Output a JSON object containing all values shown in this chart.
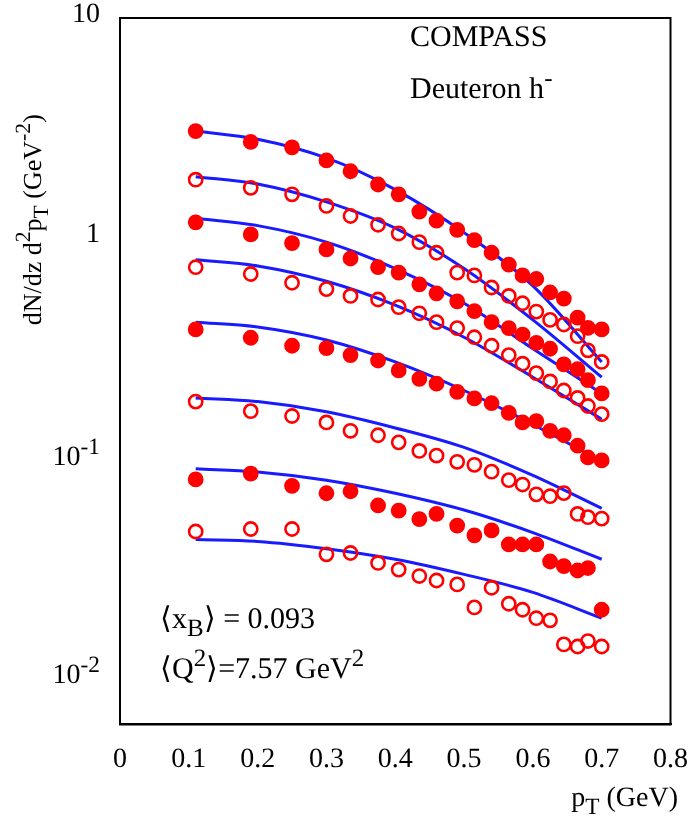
{
  "chart_data": {
    "type": "scatter",
    "xlabel": "p$_{T}$ (GeV)",
    "ylabel": "dN/dz d$^{2}$p$_{T}$ (GeV$^{-2}$)",
    "annotations": [
      "COMPASS",
      "Deuteron   h$^{-}$",
      "⟨x$_{B}$⟩ = 0.093",
      "⟨Q$^{2}$⟩=7.57 GeV$^{2}$"
    ],
    "x": [
      0.11,
      0.19,
      0.25,
      0.3,
      0.335,
      0.375,
      0.405,
      0.435,
      0.46,
      0.49,
      0.515,
      0.54,
      0.565,
      0.585,
      0.605,
      0.625,
      0.645,
      0.665,
      0.68,
      0.7
    ],
    "series": [
      {
        "color": "#ff0000",
        "marker": "circle",
        "values": [
          3.05,
          2.72,
          2.57,
          2.24,
          2.0,
          1.74,
          1.57,
          1.31,
          1.19,
          1.08,
          0.97,
          0.85,
          0.75,
          0.67,
          0.645,
          0.56,
          0.525,
          0.43,
          0.386,
          0.38
        ]
      },
      {
        "color": "#ff0000",
        "marker": "circle-open",
        "values": [
          1.83,
          1.68,
          1.57,
          1.39,
          1.25,
          1.14,
          1.04,
          0.95,
          0.85,
          0.69,
          0.67,
          0.59,
          0.54,
          0.5,
          0.458,
          0.42,
          0.4,
          0.354,
          0.305,
          0.27
        ]
      },
      {
        "color": "#ff0000",
        "marker": "circle",
        "values": [
          1.17,
          1.03,
          0.94,
          0.88,
          0.8,
          0.73,
          0.69,
          0.61,
          0.555,
          0.51,
          0.46,
          0.41,
          0.385,
          0.36,
          0.33,
          0.31,
          0.263,
          0.25,
          0.223,
          0.194
        ]
      },
      {
        "color": "#ff0000",
        "marker": "circle-open",
        "values": [
          0.73,
          0.68,
          0.62,
          0.58,
          0.54,
          0.52,
          0.48,
          0.45,
          0.41,
          0.385,
          0.35,
          0.32,
          0.29,
          0.265,
          0.24,
          0.22,
          0.2,
          0.185,
          0.17,
          0.156
        ]
      },
      {
        "color": "#ff0000",
        "marker": "circle",
        "values": [
          0.38,
          0.348,
          0.32,
          0.312,
          0.29,
          0.274,
          0.247,
          0.226,
          0.215,
          0.197,
          0.184,
          0.175,
          0.158,
          0.143,
          0.145,
          0.131,
          0.125,
          0.112,
          0.099,
          0.096
        ]
      },
      {
        "color": "#ff0000",
        "marker": "circle-open",
        "values": [
          0.178,
          0.161,
          0.153,
          0.143,
          0.131,
          0.125,
          0.116,
          0.106,
          0.101,
          0.0946,
          0.0916,
          0.0853,
          0.078,
          0.0745,
          0.0672,
          0.0659,
          0.0681,
          0.0547,
          0.0529,
          0.0521
        ]
      },
      {
        "color": "#ff0000",
        "marker": "circle",
        "values": [
          0.0786,
          0.0836,
          0.0735,
          0.068,
          0.0694,
          0.0598,
          0.0566,
          0.0518,
          0.0547,
          0.0484,
          0.0437,
          0.046,
          0.0397,
          0.0397,
          0.0397,
          0.0332,
          0.0316,
          0.0302,
          0.031,
          0.02
        ]
      },
      {
        "color": "#ff0000",
        "marker": "circle-open",
        "values": [
          0.0455,
          0.0467,
          0.0467,
          0.0358,
          0.0363,
          0.0327,
          0.0305,
          0.0285,
          0.0272,
          0.0261,
          0.0205,
          0.0252,
          0.0213,
          0.02,
          0.0183,
          0.0179,
          0.0139,
          0.0136,
          0.0144,
          0.0136
        ]
      },
      {
        "type": "line",
        "color": "#1a1aff",
        "x": [
          0.11,
          0.2,
          0.3,
          0.4,
          0.5,
          0.6,
          0.7
        ],
        "values": [
          3.05,
          2.8,
          2.3,
          1.65,
          1.05,
          0.6,
          0.27
        ]
      },
      {
        "type": "line",
        "color": "#1a1aff",
        "x": [
          0.11,
          0.2,
          0.3,
          0.4,
          0.5,
          0.6,
          0.7
        ],
        "values": [
          1.89,
          1.75,
          1.45,
          1.1,
          0.72,
          0.42,
          0.23
        ]
      },
      {
        "type": "line",
        "color": "#1a1aff",
        "x": [
          0.11,
          0.2,
          0.3,
          0.4,
          0.5,
          0.6,
          0.7
        ],
        "values": [
          1.22,
          1.13,
          0.95,
          0.72,
          0.5,
          0.31,
          0.194
        ]
      },
      {
        "type": "line",
        "color": "#1a1aff",
        "x": [
          0.11,
          0.2,
          0.3,
          0.4,
          0.5,
          0.6,
          0.7
        ],
        "values": [
          0.79,
          0.74,
          0.63,
          0.49,
          0.35,
          0.23,
          0.148
        ]
      },
      {
        "type": "line",
        "color": "#1a1aff",
        "x": [
          0.11,
          0.2,
          0.3,
          0.4,
          0.5,
          0.6,
          0.7
        ],
        "values": [
          0.41,
          0.39,
          0.34,
          0.27,
          0.2,
          0.14,
          0.095
        ]
      },
      {
        "type": "line",
        "color": "#1a1aff",
        "x": [
          0.11,
          0.2,
          0.3,
          0.4,
          0.5,
          0.6,
          0.7
        ],
        "values": [
          0.185,
          0.178,
          0.16,
          0.135,
          0.11,
          0.082,
          0.058
        ]
      },
      {
        "type": "line",
        "color": "#1a1aff",
        "x": [
          0.11,
          0.2,
          0.3,
          0.4,
          0.5,
          0.6,
          0.7
        ],
        "values": [
          0.088,
          0.085,
          0.078,
          0.068,
          0.057,
          0.045,
          0.034
        ]
      },
      {
        "type": "line",
        "color": "#1a1aff",
        "x": [
          0.11,
          0.2,
          0.3,
          0.4,
          0.5,
          0.6,
          0.7
        ],
        "values": [
          0.0418,
          0.041,
          0.038,
          0.034,
          0.029,
          0.024,
          0.0183
        ]
      }
    ],
    "log": "y",
    "xlim": [
      0,
      0.8
    ],
    "ylim": [
      0.006,
      10
    ],
    "xticks": [
      0,
      0.1,
      0.2,
      0.3,
      0.4,
      0.5,
      0.6,
      0.7,
      0.8
    ],
    "yticks": [
      {
        "value": 0.01,
        "label": "10$^{-2}$"
      },
      {
        "value": 0.1,
        "label": "10$^{-1}$"
      },
      1,
      10
    ],
    "grid": false,
    "legend": false
  }
}
